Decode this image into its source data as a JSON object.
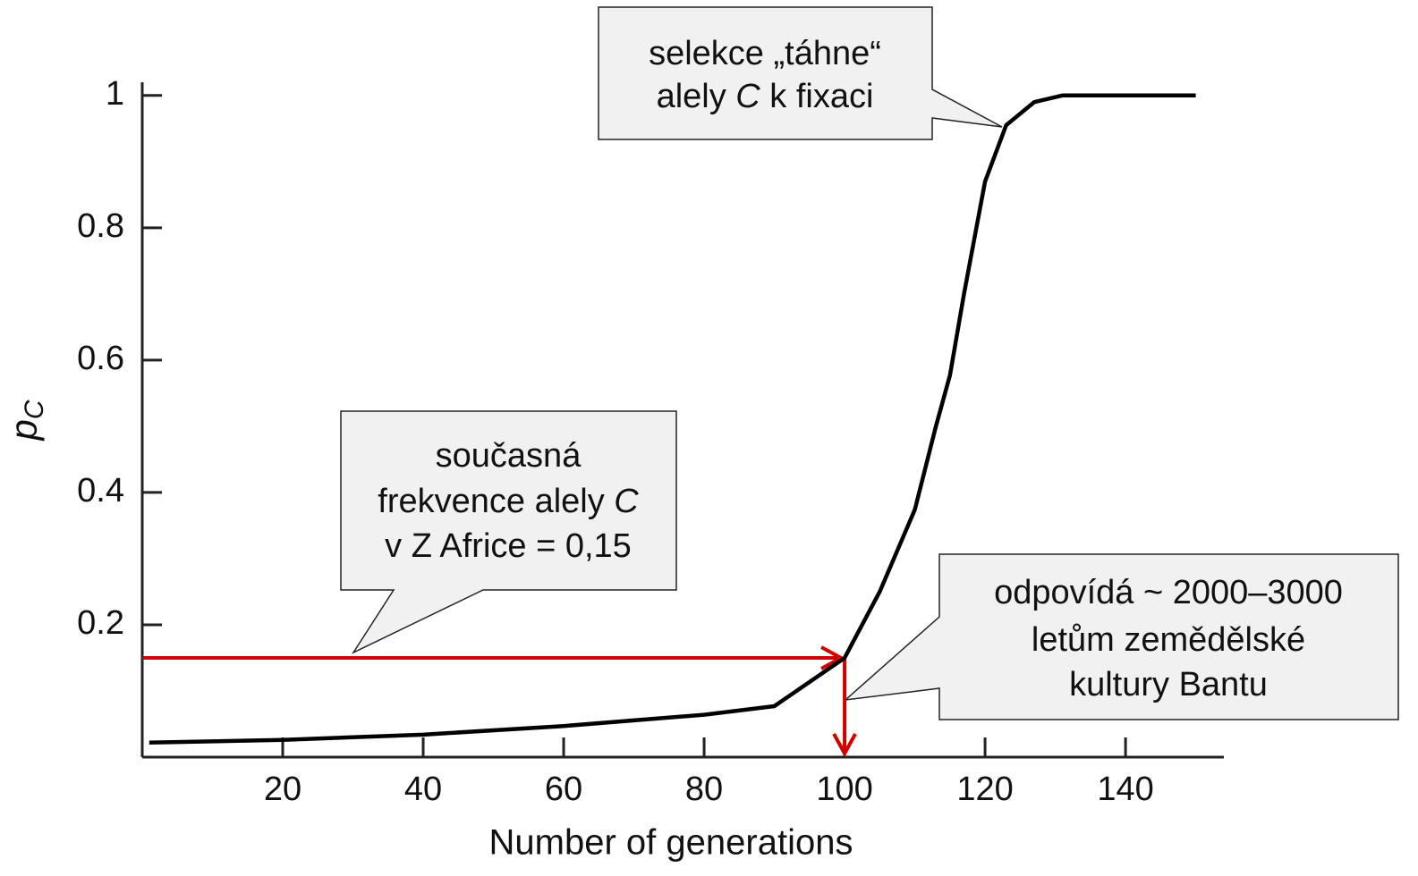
{
  "chart_data": {
    "type": "line",
    "xlabel": "Number of generations",
    "ylabel": "p",
    "ylabel_sub": "C",
    "xlim": [
      0,
      154
    ],
    "ylim": [
      0,
      1.02
    ],
    "xticks": [
      20,
      40,
      60,
      80,
      100,
      120,
      140
    ],
    "yticks": [
      0.2,
      0.4,
      0.6,
      0.8,
      1
    ],
    "series": [
      {
        "color": "#000000",
        "x": [
          1,
          20,
          40,
          60,
          80,
          90,
          100,
          105,
          110,
          113,
          115,
          117,
          120,
          123,
          127,
          131,
          150
        ],
        "values": [
          0.022,
          0.026,
          0.034,
          0.047,
          0.064,
          0.077,
          0.15,
          0.25,
          0.374,
          0.5,
          0.577,
          0.7,
          0.87,
          0.955,
          0.99,
          1,
          1
        ]
      }
    ],
    "marker": {
      "x": 100,
      "y": 0.15,
      "color": "#d40000"
    },
    "annotations": [
      {
        "lines": [
          [
            {
              "text": "selekce „táhne“"
            }
          ],
          [
            {
              "text": "alely "
            },
            {
              "text": "C",
              "italic": true
            },
            {
              "text": " k fixaci"
            }
          ]
        ]
      },
      {
        "lines": [
          [
            {
              "text": "současná"
            }
          ],
          [
            {
              "text": "frekvence alely "
            },
            {
              "text": "C",
              "italic": true
            }
          ],
          [
            {
              "text": "v Z Africe = 0,15"
            }
          ]
        ]
      },
      {
        "lines": [
          [
            {
              "text": "odpovídá ~ 2000–3000"
            }
          ],
          [
            {
              "text": "letům zemědělské"
            }
          ],
          [
            {
              "text": "kultury Bantu"
            }
          ]
        ]
      }
    ]
  }
}
